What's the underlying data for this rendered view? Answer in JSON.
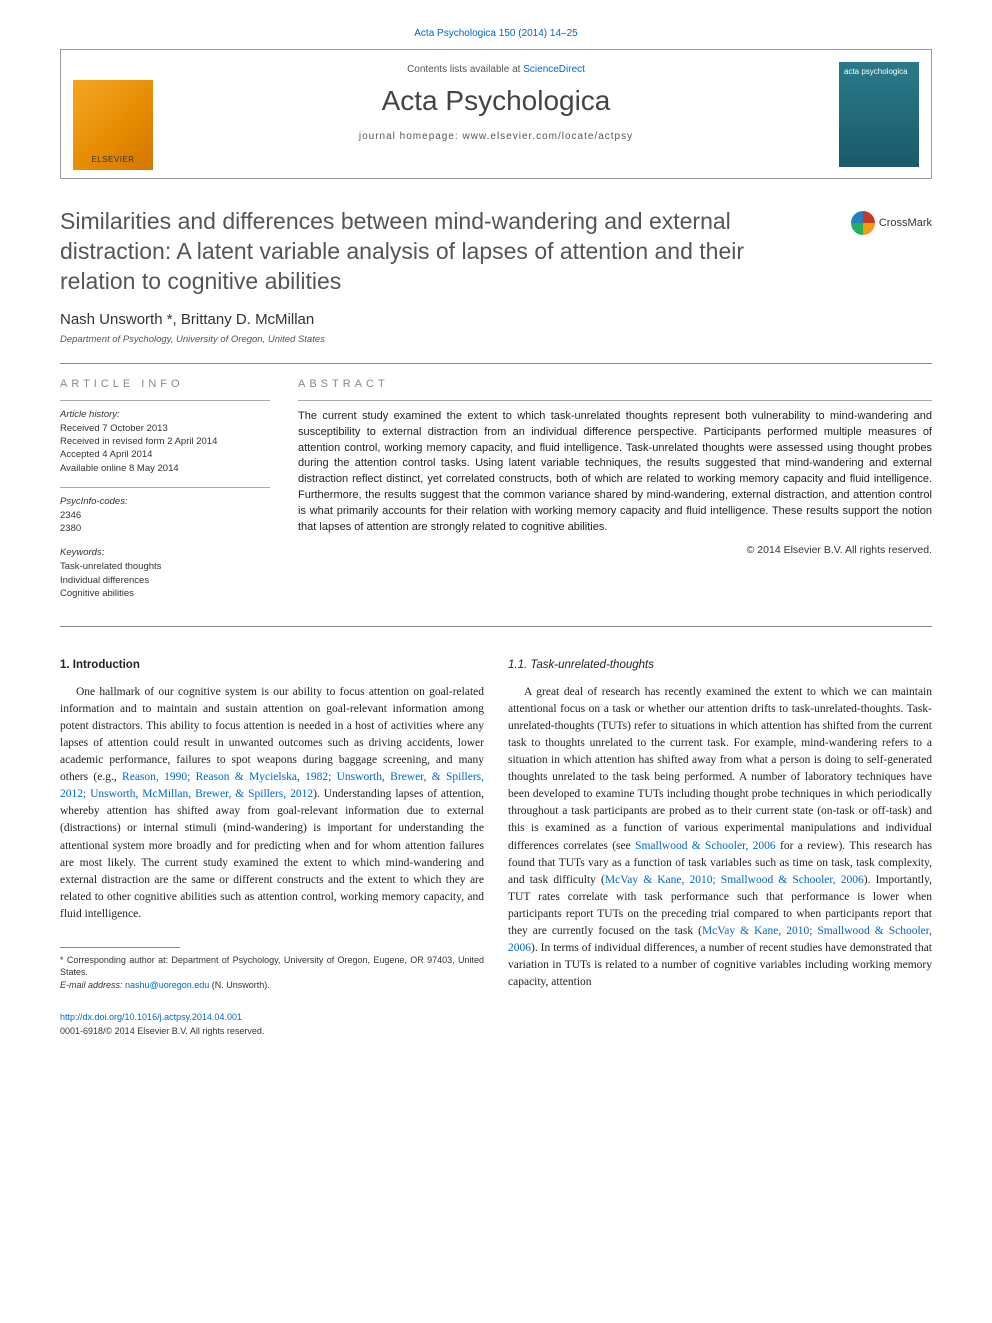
{
  "top_link": "Acta Psychologica 150 (2014) 14–25",
  "header": {
    "publisher_name": "ELSEVIER",
    "contents_prefix": "Contents lists available at ",
    "contents_link": "ScienceDirect",
    "journal_name": "Acta Psychologica",
    "homepage_line": "journal homepage: www.elsevier.com/locate/actpsy",
    "cover_text": "acta psychologica"
  },
  "crossmark_label": "CrossMark",
  "article": {
    "title": "Similarities and differences between mind-wandering and external distraction: A latent variable analysis of lapses of attention and their relation to cognitive abilities",
    "authors": "Nash Unsworth *, Brittany D. McMillan",
    "affiliation": "Department of Psychology, University of Oregon, United States"
  },
  "info": {
    "heading": "ARTICLE INFO",
    "history_label": "Article history:",
    "history": "Received 7 October 2013\nReceived in revised form 2 April 2014\nAccepted 4 April 2014\nAvailable online 8 May 2014",
    "psycinfo_label": "PsycInfo-codes:",
    "psycinfo": "2346\n2380",
    "keywords_label": "Keywords:",
    "keywords": "Task-unrelated thoughts\nIndividual differences\nCognitive abilities"
  },
  "abstract": {
    "heading": "ABSTRACT",
    "text": "The current study examined the extent to which task-unrelated thoughts represent both vulnerability to mind-wandering and susceptibility to external distraction from an individual difference perspective. Participants performed multiple measures of attention control, working memory capacity, and fluid intelligence. Task-unrelated thoughts were assessed using thought probes during the attention control tasks. Using latent variable techniques, the results suggested that mind-wandering and external distraction reflect distinct, yet correlated constructs, both of which are related to working memory capacity and fluid intelligence. Furthermore, the results suggest that the common variance shared by mind-wandering, external distraction, and attention control is what primarily accounts for their relation with working memory capacity and fluid intelligence. These results support the notion that lapses of attention are strongly related to cognitive abilities.",
    "copyright": "© 2014 Elsevier B.V. All rights reserved."
  },
  "body": {
    "intro_heading": "1. Introduction",
    "intro_para": "One hallmark of our cognitive system is our ability to focus attention on goal-related information and to maintain and sustain attention on goal-relevant information among potent distractors. This ability to focus attention is needed in a host of activities where any lapses of attention could result in unwanted outcomes such as driving accidents, lower academic performance, failures to spot weapons during baggage screening, and many others (e.g., ",
    "intro_cite1": "Reason, 1990; Reason & Mycielska, 1982; Unsworth, Brewer, & Spillers, 2012; Unsworth, McMillan, Brewer, & Spillers, 2012",
    "intro_para2": "). Understanding lapses of attention, whereby attention has shifted away from goal-relevant information due to external (distractions) or internal stimuli (mind-wandering) is important for understanding the attentional system more broadly and for predicting when and for whom attention failures are most likely. The current study examined the extent to which mind-wandering and external distraction are the same or different constructs and the extent to which they are related to other cognitive abilities such as attention control, working memory capacity, and fluid intelligence.",
    "tut_heading": "1.1. Task-unrelated-thoughts",
    "tut_para1": "A great deal of research has recently examined the extent to which we can maintain attentional focus on a task or whether our attention drifts to task-unrelated-thoughts. Task-unrelated-thoughts (TUTs) refer to situations in which attention has shifted from the current task to thoughts unrelated to the current task. For example, mind-wandering refers to a situation in which attention has shifted away from what a person is doing to self-generated thoughts unrelated to the task being performed. A number of laboratory techniques have been developed to examine TUTs including thought probe techniques in which periodically throughout a task participants are probed as to their current state (on-task or off-task) and this is examined as a function of various experimental manipulations and individual differences correlates (see ",
    "tut_cite1": "Smallwood & Schooler, 2006",
    "tut_para2": " for a review). This research has found that TUTs vary as a function of task variables such as time on task, task complexity, and task difficulty (",
    "tut_cite2": "McVay & Kane, 2010; Smallwood & Schooler, 2006",
    "tut_para3": "). Importantly, TUT rates correlate with task performance such that performance is lower when participants report TUTs on the preceding trial compared to when participants report that they are currently focused on the task (",
    "tut_cite3": "McVay & Kane, 2010; Smallwood & Schooler, 2006",
    "tut_para4": "). In terms of individual differences, a number of recent studies have demonstrated that variation in TUTs is related to a number of cognitive variables including working memory capacity, attention"
  },
  "footnote": {
    "corr_text": "* Corresponding author at: Department of Psychology, University of Oregon, Eugene, OR 97403, United States.",
    "email_label": "E-mail address: ",
    "email": "nashu@uoregon.edu",
    "email_suffix": " (N. Unsworth)."
  },
  "footer": {
    "doi": "http://dx.doi.org/10.1016/j.actpsy.2014.04.001",
    "issn": "0001-6918/© 2014 Elsevier B.V. All rights reserved."
  },
  "colors": {
    "link": "#0066cc",
    "text": "#222222",
    "heading_gray": "#888888",
    "rule": "#888888",
    "elsevier_orange": "#e58a00",
    "cover_teal": "#2a7a8a"
  },
  "typography": {
    "title_fontsize": 23,
    "journal_fontsize": 28,
    "body_fontsize": 11.5,
    "abstract_fontsize": 11,
    "info_fontsize": 9.5,
    "footnote_fontsize": 9
  }
}
